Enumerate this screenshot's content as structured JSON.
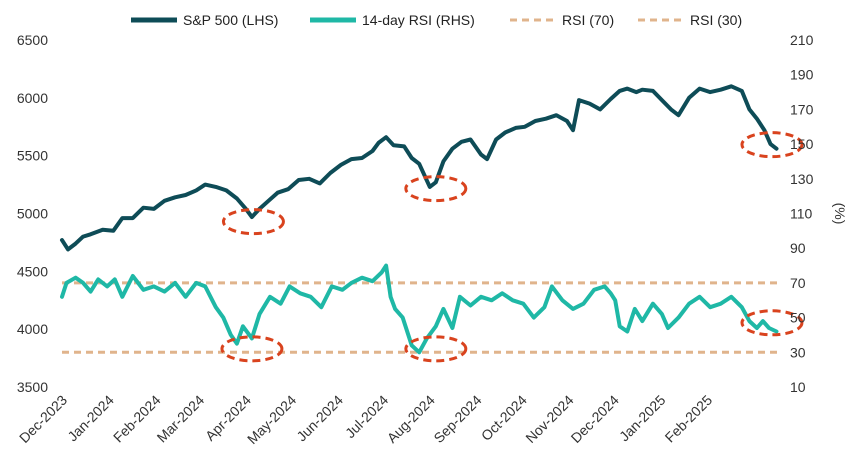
{
  "chart_data": {
    "type": "line",
    "legend": [
      {
        "label": "S&P 500 (LHS)",
        "color": "#0e4c57",
        "style": "solid"
      },
      {
        "label": "14-day RSI (RHS)",
        "color": "#1fb8a6",
        "style": "solid"
      },
      {
        "label": "RSI (70)",
        "color": "#e0b48c",
        "style": "dashed"
      },
      {
        "label": "RSI (30)",
        "color": "#e0b48c",
        "style": "dashed"
      }
    ],
    "legend_position": "top-center",
    "grid": false,
    "y_left": {
      "ticks": [
        3500,
        4000,
        4500,
        5000,
        5500,
        6000,
        6500
      ],
      "range": [
        3500,
        6500
      ]
    },
    "y_right": {
      "label": "(%)",
      "ticks": [
        10,
        30,
        50,
        70,
        90,
        110,
        130,
        150,
        170,
        190,
        210
      ],
      "range": [
        10,
        210
      ]
    },
    "x_ticks": [
      "Dec-2023",
      "Jan-2024",
      "Feb-2024",
      "Mar-2024",
      "Apr-2024",
      "May-2024",
      "Jun-2024",
      "Jul-2024",
      "Aug-2024",
      "Sep-2024",
      "Oct-2024",
      "Nov-2024",
      "Dec-2024",
      "Jan-2025",
      "Feb-2025"
    ],
    "sp500": {
      "name": "S&P 500 (LHS)",
      "color": "#0e4c57",
      "points": [
        [
          "2023-12-01",
          4770
        ],
        [
          "2023-12-05",
          4690
        ],
        [
          "2023-12-10",
          4740
        ],
        [
          "2023-12-15",
          4800
        ],
        [
          "2023-12-20",
          4820
        ],
        [
          "2023-12-28",
          4860
        ],
        [
          "2024-01-04",
          4850
        ],
        [
          "2024-01-10",
          4960
        ],
        [
          "2024-01-17",
          4960
        ],
        [
          "2024-01-24",
          5050
        ],
        [
          "2024-01-31",
          5040
        ],
        [
          "2024-02-07",
          5110
        ],
        [
          "2024-02-14",
          5140
        ],
        [
          "2024-02-21",
          5160
        ],
        [
          "2024-02-28",
          5200
        ],
        [
          "2024-03-05",
          5250
        ],
        [
          "2024-03-12",
          5230
        ],
        [
          "2024-03-19",
          5200
        ],
        [
          "2024-03-26",
          5130
        ],
        [
          "2024-04-01",
          5040
        ],
        [
          "2024-04-05",
          4970
        ],
        [
          "2024-04-10",
          5040
        ],
        [
          "2024-04-16",
          5110
        ],
        [
          "2024-04-22",
          5180
        ],
        [
          "2024-04-29",
          5210
        ],
        [
          "2024-05-06",
          5290
        ],
        [
          "2024-05-13",
          5300
        ],
        [
          "2024-05-20",
          5260
        ],
        [
          "2024-05-27",
          5350
        ],
        [
          "2024-06-03",
          5420
        ],
        [
          "2024-06-10",
          5470
        ],
        [
          "2024-06-17",
          5480
        ],
        [
          "2024-06-24",
          5540
        ],
        [
          "2024-06-28",
          5610
        ],
        [
          "2024-07-03",
          5660
        ],
        [
          "2024-07-08",
          5590
        ],
        [
          "2024-07-15",
          5580
        ],
        [
          "2024-07-20",
          5480
        ],
        [
          "2024-07-25",
          5430
        ],
        [
          "2024-08-01",
          5230
        ],
        [
          "2024-08-05",
          5270
        ],
        [
          "2024-08-10",
          5450
        ],
        [
          "2024-08-16",
          5560
        ],
        [
          "2024-08-22",
          5620
        ],
        [
          "2024-08-28",
          5640
        ],
        [
          "2024-09-04",
          5510
        ],
        [
          "2024-09-08",
          5470
        ],
        [
          "2024-09-14",
          5640
        ],
        [
          "2024-09-20",
          5700
        ],
        [
          "2024-09-27",
          5740
        ],
        [
          "2024-10-03",
          5750
        ],
        [
          "2024-10-10",
          5800
        ],
        [
          "2024-10-17",
          5820
        ],
        [
          "2024-10-24",
          5850
        ],
        [
          "2024-10-31",
          5800
        ],
        [
          "2024-11-04",
          5720
        ],
        [
          "2024-11-08",
          5980
        ],
        [
          "2024-11-15",
          5950
        ],
        [
          "2024-11-22",
          5900
        ],
        [
          "2024-11-29",
          5990
        ],
        [
          "2024-12-05",
          6060
        ],
        [
          "2024-12-10",
          6080
        ],
        [
          "2024-12-16",
          6050
        ],
        [
          "2024-12-20",
          6070
        ],
        [
          "2024-12-27",
          6060
        ],
        [
          "2025-01-02",
          5980
        ],
        [
          "2025-01-08",
          5900
        ],
        [
          "2025-01-13",
          5850
        ],
        [
          "2025-01-20",
          6000
        ],
        [
          "2025-01-27",
          6080
        ],
        [
          "2025-02-03",
          6050
        ],
        [
          "2025-02-10",
          6070
        ],
        [
          "2025-02-17",
          6100
        ],
        [
          "2025-02-24",
          6060
        ],
        [
          "2025-03-01",
          5900
        ],
        [
          "2025-03-06",
          5820
        ],
        [
          "2025-03-11",
          5720
        ],
        [
          "2025-03-15",
          5600
        ],
        [
          "2025-03-19",
          5560
        ]
      ]
    },
    "rsi": {
      "name": "14-day RSI (RHS)",
      "color": "#1fb8a6",
      "points": [
        [
          "2023-12-01",
          62
        ],
        [
          "2023-12-04",
          70
        ],
        [
          "2023-12-10",
          73
        ],
        [
          "2023-12-15",
          70
        ],
        [
          "2023-12-20",
          65
        ],
        [
          "2023-12-25",
          72
        ],
        [
          "2023-12-31",
          68
        ],
        [
          "2024-01-05",
          72
        ],
        [
          "2024-01-10",
          62
        ],
        [
          "2024-01-17",
          74
        ],
        [
          "2024-01-24",
          66
        ],
        [
          "2024-01-31",
          68
        ],
        [
          "2024-02-07",
          65
        ],
        [
          "2024-02-14",
          70
        ],
        [
          "2024-02-21",
          62
        ],
        [
          "2024-02-28",
          70
        ],
        [
          "2024-03-05",
          68
        ],
        [
          "2024-03-12",
          56
        ],
        [
          "2024-03-17",
          50
        ],
        [
          "2024-03-22",
          40
        ],
        [
          "2024-03-26",
          35
        ],
        [
          "2024-03-30",
          45
        ],
        [
          "2024-04-05",
          38
        ],
        [
          "2024-04-10",
          52
        ],
        [
          "2024-04-17",
          62
        ],
        [
          "2024-04-24",
          58
        ],
        [
          "2024-04-30",
          68
        ],
        [
          "2024-05-07",
          64
        ],
        [
          "2024-05-14",
          62
        ],
        [
          "2024-05-21",
          56
        ],
        [
          "2024-05-28",
          68
        ],
        [
          "2024-06-04",
          66
        ],
        [
          "2024-06-10",
          70
        ],
        [
          "2024-06-17",
          73
        ],
        [
          "2024-06-24",
          71
        ],
        [
          "2024-06-30",
          76
        ],
        [
          "2024-07-03",
          80
        ],
        [
          "2024-07-06",
          62
        ],
        [
          "2024-07-09",
          55
        ],
        [
          "2024-07-14",
          50
        ],
        [
          "2024-07-20",
          34
        ],
        [
          "2024-07-25",
          30
        ],
        [
          "2024-07-30",
          38
        ],
        [
          "2024-08-05",
          45
        ],
        [
          "2024-08-10",
          55
        ],
        [
          "2024-08-16",
          44
        ],
        [
          "2024-08-21",
          62
        ],
        [
          "2024-08-28",
          57
        ],
        [
          "2024-09-04",
          62
        ],
        [
          "2024-09-11",
          60
        ],
        [
          "2024-09-18",
          64
        ],
        [
          "2024-09-25",
          60
        ],
        [
          "2024-10-02",
          58
        ],
        [
          "2024-10-09",
          50
        ],
        [
          "2024-10-16",
          56
        ],
        [
          "2024-10-21",
          68
        ],
        [
          "2024-10-28",
          60
        ],
        [
          "2024-11-04",
          55
        ],
        [
          "2024-11-11",
          58
        ],
        [
          "2024-11-18",
          66
        ],
        [
          "2024-11-25",
          68
        ],
        [
          "2024-11-29",
          64
        ],
        [
          "2024-12-02",
          60
        ],
        [
          "2024-12-05",
          45
        ],
        [
          "2024-12-10",
          42
        ],
        [
          "2024-12-15",
          55
        ],
        [
          "2024-12-20",
          48
        ],
        [
          "2024-12-27",
          58
        ],
        [
          "2025-01-02",
          52
        ],
        [
          "2025-01-06",
          44
        ],
        [
          "2025-01-13",
          50
        ],
        [
          "2025-01-20",
          58
        ],
        [
          "2025-01-27",
          62
        ],
        [
          "2025-02-03",
          56
        ],
        [
          "2025-02-10",
          58
        ],
        [
          "2025-02-17",
          62
        ],
        [
          "2025-02-24",
          56
        ],
        [
          "2025-03-01",
          48
        ],
        [
          "2025-03-06",
          44
        ],
        [
          "2025-03-10",
          48
        ],
        [
          "2025-03-14",
          44
        ],
        [
          "2025-03-19",
          42
        ]
      ]
    },
    "reference_lines": [
      {
        "name": "RSI (70)",
        "value": 70,
        "axis": "right",
        "color": "#e0b48c"
      },
      {
        "name": "RSI (30)",
        "value": 30,
        "axis": "right",
        "color": "#e0b48c"
      }
    ],
    "annotations": [
      {
        "shape": "ellipse",
        "style": "dashed",
        "color": "#d9431e",
        "x": "2024-04-06",
        "value": 4930,
        "axis": "left"
      },
      {
        "shape": "ellipse",
        "style": "dashed",
        "color": "#d9431e",
        "x": "2024-08-05",
        "value": 5215,
        "axis": "left"
      },
      {
        "shape": "ellipse",
        "style": "dashed",
        "color": "#d9431e",
        "x": "2025-03-16",
        "value": 5595,
        "axis": "left"
      },
      {
        "shape": "ellipse",
        "style": "dashed",
        "color": "#d9431e",
        "x": "2024-04-05",
        "value": 32,
        "axis": "right"
      },
      {
        "shape": "ellipse",
        "style": "dashed",
        "color": "#d9431e",
        "x": "2024-08-05",
        "value": 32,
        "axis": "right"
      },
      {
        "shape": "ellipse",
        "style": "dashed",
        "color": "#d9431e",
        "x": "2025-03-16",
        "value": 47,
        "axis": "right"
      }
    ]
  }
}
